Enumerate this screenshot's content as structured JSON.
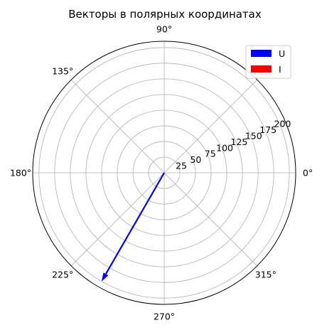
{
  "chart_data": {
    "type": "polar",
    "title": "Векторы в полярных координатах",
    "theta_tick_labels": [
      "0°",
      "45°",
      "90°",
      "135°",
      "180°",
      "225°",
      "270°",
      "315°"
    ],
    "theta_ticks_deg": [
      0,
      45,
      90,
      135,
      180,
      225,
      270,
      315
    ],
    "r_tick_labels": [
      "25",
      "50",
      "75",
      "100",
      "125",
      "150",
      "175",
      "200"
    ],
    "r_ticks": [
      25,
      50,
      75,
      100,
      125,
      150,
      175,
      200
    ],
    "rlim": [
      0,
      210
    ],
    "grid": true,
    "legend_position": "top-right",
    "series": [
      {
        "name": "U",
        "color": "#0000ff",
        "angle_deg": 240,
        "magnitude": 200
      },
      {
        "name": "I",
        "color": "#ff0000",
        "angle_deg": 0,
        "magnitude": 0
      }
    ]
  }
}
